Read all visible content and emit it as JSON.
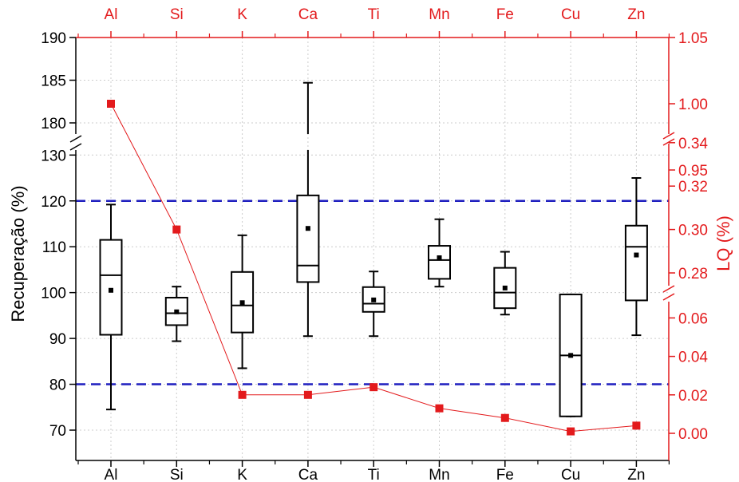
{
  "chart_data": {
    "type": "box",
    "categories": [
      "Al",
      "Si",
      "K",
      "Ca",
      "Ti",
      "Mn",
      "Fe",
      "Cu",
      "Zn"
    ],
    "ylabel_left": "Recuperação (%)",
    "ylabel_right": "LQ (%)",
    "left_axis": {
      "broken": true,
      "segments": [
        {
          "range": [
            64,
            132
          ],
          "ticks": [
            70,
            80,
            90,
            100,
            110,
            120,
            130
          ]
        },
        {
          "range": [
            177,
            190
          ],
          "ticks": [
            180,
            185,
            190
          ]
        }
      ]
    },
    "right_axis": {
      "broken": true,
      "segments": [
        {
          "range": [
            -0.01,
            0.075
          ],
          "ticks": [
            "0.00",
            "0.02",
            "0.04",
            "0.06"
          ]
        },
        {
          "range": [
            0.265,
            0.35
          ],
          "ticks": [
            "0.28",
            "0.30",
            "0.32",
            "0.34"
          ]
        },
        {
          "range": [
            0.95,
            1.1
          ],
          "ticks": [
            "0.95",
            "1.00",
            "1.05",
            "1.10"
          ]
        }
      ]
    },
    "reference_lines": [
      80,
      120
    ],
    "boxes": [
      {
        "category": "Al",
        "whisker_low": 74.5,
        "q1": 90.8,
        "median": 103.8,
        "q3": 111.5,
        "whisker_high": 119.2,
        "mean": 100.5
      },
      {
        "category": "Si",
        "whisker_low": 89.4,
        "q1": 92.9,
        "median": 95.5,
        "q3": 98.9,
        "whisker_high": 101.3,
        "mean": 95.8
      },
      {
        "category": "K",
        "whisker_low": 83.5,
        "q1": 91.3,
        "median": 97.2,
        "q3": 104.5,
        "whisker_high": 112.5,
        "mean": 97.8
      },
      {
        "category": "Ca",
        "whisker_low": 90.5,
        "q1": 102.3,
        "median": 105.9,
        "q3": 121.2,
        "whisker_high": 184.7,
        "mean": 114.0
      },
      {
        "category": "Ti",
        "whisker_low": 90.5,
        "q1": 95.8,
        "median": 97.6,
        "q3": 101.2,
        "whisker_high": 104.6,
        "mean": 98.4
      },
      {
        "category": "Mn",
        "whisker_low": 101.3,
        "q1": 103.0,
        "median": 107.1,
        "q3": 110.2,
        "whisker_high": 116.0,
        "mean": 107.6
      },
      {
        "category": "Fe",
        "whisker_low": 95.2,
        "q1": 96.6,
        "median": 100.0,
        "q3": 105.4,
        "whisker_high": 108.9,
        "mean": 101.0
      },
      {
        "category": "Cu",
        "whisker_low": 73.0,
        "q1": 73.0,
        "median": 86.3,
        "q3": 99.6,
        "whisker_high": 99.6,
        "mean": 86.3
      },
      {
        "category": "Zn",
        "whisker_low": 90.7,
        "q1": 98.3,
        "median": 110.0,
        "q3": 114.6,
        "whisker_high": 125.0,
        "mean": 108.2
      }
    ],
    "lq_series": {
      "values": [
        1.0,
        0.3,
        0.02,
        0.02,
        0.024,
        0.013,
        0.008,
        0.001,
        0.004
      ]
    },
    "colors": {
      "box": "#000000",
      "reference_line": "#1f1fbf",
      "lq_series": "#e31a1c",
      "right_axis": "#e31a1c",
      "grid": "#cccccc"
    },
    "grid": true,
    "legend": "none"
  }
}
